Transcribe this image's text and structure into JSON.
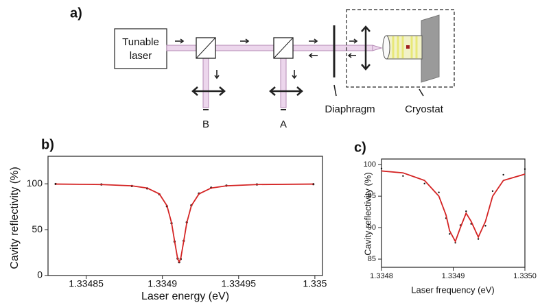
{
  "diagram": {
    "panel_label": "a)",
    "laser_label": [
      "Tunable",
      "laser"
    ],
    "port_b": "B",
    "port_a": "A",
    "diaphragm": "Diaphragm",
    "cryostat": "Cryostat"
  },
  "chart_data": [
    {
      "type": "line",
      "panel_label": "b)",
      "xlabel": "Laser energy (eV)",
      "ylabel": "Cavity reflectivity (%)",
      "x": [
        1.33483,
        1.33486,
        1.33488,
        1.33489,
        1.334898,
        1.334903,
        1.334906,
        1.334908,
        1.33491,
        1.334911,
        1.334912,
        1.334914,
        1.334916,
        1.334919,
        1.334924,
        1.334932,
        1.334942,
        1.334962,
        1.334999
      ],
      "series": [
        {
          "name": "Data",
          "mode": "markers",
          "color": "#111111",
          "values": [
            99.8,
            99.3,
            97.6,
            95.0,
            88.5,
            75.5,
            57.0,
            37.0,
            18.5,
            14.5,
            18.0,
            37.8,
            58.0,
            76.5,
            89.4,
            95.7,
            98.0,
            99.3,
            99.6
          ]
        },
        {
          "name": "Fit",
          "mode": "line",
          "color": "#d42424",
          "values": [
            99.7,
            99.2,
            97.8,
            95.4,
            89.0,
            76.1,
            57.5,
            37.5,
            18.3,
            15,
            18.3,
            37.5,
            57.5,
            76.1,
            89.0,
            95.4,
            97.8,
            99.2,
            99.7
          ]
        }
      ],
      "xlim": [
        1.334825,
        1.335005
      ],
      "xticks": [
        1.33485,
        1.3349,
        1.33495,
        1.335
      ],
      "ylim": [
        0,
        130
      ],
      "yticks": [
        0,
        50,
        100
      ]
    },
    {
      "type": "line",
      "panel_label": "c)",
      "xlabel": "Laser frequency (eV)",
      "ylabel": "Cavity reflectivity (%)",
      "x": [
        1.3348,
        1.33483,
        1.33486,
        1.33488,
        1.33489,
        1.334895,
        1.334903,
        1.33491,
        1.334918,
        1.334925,
        1.334935,
        1.334945,
        1.334955,
        1.33497,
        1.335
      ],
      "series": [
        {
          "name": "Data",
          "mode": "markers",
          "color": "#111111",
          "values": [
            99.4,
            98.2,
            97.0,
            95.6,
            91.5,
            89.0,
            87.6,
            90.4,
            92.6,
            90.6,
            88.2,
            90.3,
            95.8,
            98.4,
            99.3
          ]
        },
        {
          "name": "Fit",
          "mode": "line",
          "color": "#d42424",
          "values": [
            99.0,
            98.7,
            97.5,
            95,
            92,
            89.5,
            87.8,
            90,
            92.3,
            91,
            88.5,
            91,
            95,
            97.5,
            98.5
          ]
        }
      ],
      "xlim": [
        1.3348,
        1.335
      ],
      "xticks": [
        1.3348,
        1.3349,
        {
          "value": 1.335,
          "label": "1.3350"
        }
      ],
      "ylim": [
        83.7,
        100.9
      ],
      "yticks": [
        85,
        90,
        95,
        100
      ]
    }
  ]
}
